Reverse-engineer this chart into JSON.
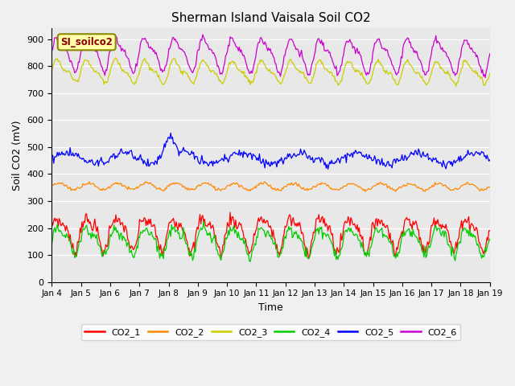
{
  "title": "Sherman Island Vaisala Soil CO2",
  "xlabel": "Time",
  "ylabel": "Soil CO2 (mV)",
  "annotation": "SI_soilco2",
  "background_color": "#f0f0f0",
  "plot_bg_color": "#e8e8e8",
  "ylim": [
    0,
    940
  ],
  "yticks": [
    0,
    100,
    200,
    300,
    400,
    500,
    600,
    700,
    800,
    900
  ],
  "x_labels": [
    "Jan 4",
    "Jan 5",
    "Jan 6",
    "Jan 7",
    "Jan 8",
    "Jan 9",
    "Jan 10",
    "Jan 11",
    "Jan 12",
    "Jan 13",
    "Jan 14",
    "Jan 15",
    "Jan 16",
    "Jan 17",
    "Jan 18",
    "Jan 19"
  ],
  "n_points": 480,
  "series": {
    "CO2_1": {
      "color": "#ff0000",
      "base": 185,
      "amp": 55,
      "trend": 0.0,
      "period": 1.0,
      "noise": 12
    },
    "CO2_2": {
      "color": "#ff8800",
      "base": 355,
      "amp": 12,
      "trend": -2.4,
      "period": 1.0,
      "noise": 3
    },
    "CO2_3": {
      "color": "#cccc00",
      "base": 782,
      "amp": 35,
      "trend": -6.0,
      "period": 1.0,
      "noise": 4
    },
    "CO2_4": {
      "color": "#00cc00",
      "base": 155,
      "amp": 45,
      "trend": 0.0,
      "period": 1.0,
      "noise": 10
    },
    "CO2_5": {
      "color": "#0000ff",
      "base": 460,
      "amp": 20,
      "trend": -4.0,
      "period": 2.0,
      "noise": 8
    },
    "CO2_6": {
      "color": "#cc00cc",
      "base": 848,
      "amp": 55,
      "trend": -9.7,
      "period": 1.0,
      "noise": 6
    }
  }
}
